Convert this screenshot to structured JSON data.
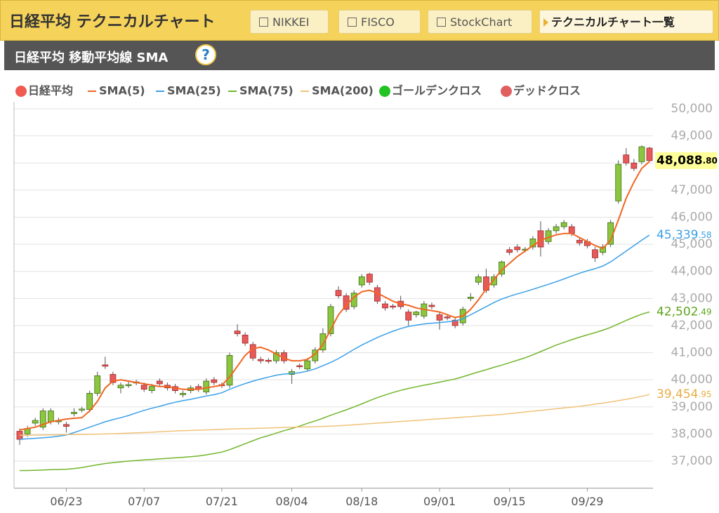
{
  "header": {
    "title": "日経平均 テクニカルチャート",
    "links": [
      "NIKKEI",
      "FISCO",
      "StockChart"
    ],
    "list_button": "テクニカルチャート一覧"
  },
  "subheader": {
    "title": "日経平均 移動平均線 SMA",
    "help": "?"
  },
  "chart_data": {
    "type": "candlestick",
    "categories": [
      null,
      null,
      null,
      null,
      null,
      null,
      "06/23",
      null,
      null,
      null,
      null,
      null,
      null,
      null,
      null,
      null,
      "07/07",
      null,
      null,
      null,
      null,
      null,
      null,
      null,
      null,
      null,
      "07/21",
      null,
      null,
      null,
      null,
      null,
      null,
      null,
      null,
      "08/04",
      null,
      null,
      null,
      null,
      null,
      null,
      null,
      null,
      "08/18",
      null,
      null,
      null,
      null,
      null,
      null,
      null,
      null,
      null,
      "09/01",
      null,
      null,
      null,
      null,
      null,
      null,
      null,
      null,
      "09/15",
      null,
      null,
      null,
      null,
      null,
      null,
      null,
      null,
      null,
      "09/29",
      null,
      null,
      null,
      null,
      null,
      null,
      null,
      null
    ],
    "candles": {
      "name": "日経平均",
      "color": "#f05a50",
      "up_color": "#8cc63f",
      "down_color": "#e85a5a",
      "open": [
        38100,
        38000,
        38400,
        38250,
        38450,
        38450,
        38350,
        38750,
        38880,
        38900,
        39500,
        40550,
        40200,
        39700,
        39780,
        39880,
        39800,
        39600,
        39950,
        39800,
        39750,
        39450,
        39600,
        39750,
        39550,
        40000,
        39820,
        39800,
        41800,
        41650,
        41300,
        40750,
        40720,
        40700,
        41000,
        40200,
        40520,
        40400,
        40700,
        41100,
        41700,
        43300,
        43100,
        42700,
        43500,
        43900,
        43400,
        42800,
        42720,
        42900,
        42500,
        42400,
        42350,
        42750,
        42400,
        42320,
        42200,
        42100,
        43000,
        43600,
        43800,
        43500,
        43900,
        44800,
        44900,
        44780,
        44900,
        45500,
        45100,
        45500,
        45650,
        45650,
        45150,
        45100,
        44800,
        44700,
        45000,
        46600,
        48300,
        48000,
        48050,
        48550
      ],
      "high": [
        38200,
        38300,
        38600,
        38950,
        38950,
        38600,
        38450,
        38950,
        39000,
        39600,
        40300,
        40850,
        40300,
        39900,
        39950,
        40000,
        39900,
        39850,
        40050,
        39900,
        39850,
        39600,
        39800,
        39850,
        40050,
        40100,
        39900,
        41000,
        42050,
        41750,
        41400,
        40850,
        40800,
        41100,
        41100,
        40400,
        40600,
        40800,
        41200,
        41900,
        42800,
        43450,
        43200,
        43300,
        43900,
        43950,
        43500,
        42900,
        42800,
        43100,
        42600,
        42550,
        42900,
        42850,
        42500,
        42400,
        42300,
        42700,
        43200,
        43900,
        44100,
        43900,
        44400,
        44900,
        45000,
        44900,
        45300,
        45850,
        45600,
        45750,
        45900,
        45750,
        45250,
        45200,
        44900,
        45000,
        45900,
        48100,
        48550,
        48150,
        48650,
        48600
      ],
      "low": [
        37600,
        37900,
        38300,
        38150,
        38350,
        38350,
        38050,
        38650,
        38800,
        38800,
        39400,
        40400,
        39800,
        39500,
        39700,
        39800,
        39550,
        39500,
        39750,
        39600,
        39500,
        39350,
        39500,
        39550,
        39450,
        39800,
        39700,
        39700,
        41600,
        41250,
        40700,
        40600,
        40600,
        40600,
        40600,
        39850,
        40400,
        40300,
        40600,
        41000,
        41600,
        43000,
        42500,
        42600,
        43400,
        43500,
        42800,
        42550,
        42600,
        42600,
        42000,
        42300,
        42250,
        42600,
        41850,
        42200,
        41900,
        42000,
        42900,
        43500,
        43200,
        43400,
        43800,
        44600,
        44700,
        44700,
        44800,
        44550,
        45000,
        45400,
        45550,
        45300,
        44950,
        44850,
        44350,
        44600,
        44900,
        46500,
        47900,
        47700,
        47950,
        48050
      ],
      "close": [
        37800,
        38200,
        38500,
        38850,
        38850,
        38500,
        38280,
        38800,
        38920,
        39500,
        40150,
        40500,
        39900,
        39800,
        39820,
        39920,
        39650,
        39750,
        39850,
        39700,
        39600,
        39500,
        39700,
        39650,
        39950,
        39900,
        39780,
        40900,
        41700,
        41350,
        40800,
        40700,
        40680,
        41000,
        40700,
        40300,
        40480,
        40700,
        41100,
        41700,
        42700,
        43100,
        42600,
        43200,
        43800,
        43600,
        42900,
        42650,
        42680,
        42700,
        42200,
        42500,
        42800,
        42700,
        42200,
        42280,
        42000,
        42600,
        43050,
        43800,
        43300,
        43800,
        44350,
        44700,
        44800,
        44820,
        45200,
        44900,
        45500,
        45650,
        45800,
        45400,
        45050,
        44950,
        44500,
        44900,
        45800,
        47950,
        48000,
        47800,
        48600,
        48088.8
      ],
      "last_label": "48,088.80"
    },
    "series": [
      {
        "name": "SMA(5)",
        "color": "#f26522",
        "values": [
          38150,
          38200,
          38250,
          38350,
          38450,
          38500,
          38550,
          38580,
          38600,
          38850,
          39200,
          39700,
          39950,
          40000,
          39950,
          39900,
          39850,
          39800,
          39750,
          39750,
          39700,
          39650,
          39650,
          39650,
          39700,
          39750,
          39800,
          40100,
          40500,
          40900,
          41150,
          41200,
          41100,
          40950,
          40800,
          40700,
          40700,
          40750,
          40950,
          41300,
          41850,
          42400,
          42750,
          43050,
          43250,
          43300,
          43200,
          43050,
          42900,
          42800,
          42750,
          42650,
          42600,
          42550,
          42500,
          42400,
          42300,
          42350,
          42600,
          42950,
          43350,
          43700,
          44050,
          44300,
          44550,
          44750,
          44950,
          45150,
          45250,
          45350,
          45400,
          45400,
          45250,
          45100,
          44950,
          44850,
          45150,
          45900,
          46700,
          47300,
          47800,
          48050
        ]
      },
      {
        "name": "SMA(25)",
        "color": "#3aa0e8",
        "label_color": "#3aa0e8",
        "last_label": "45,339.58",
        "values": [
          37800,
          37820,
          37840,
          37860,
          37880,
          37920,
          37960,
          38050,
          38150,
          38250,
          38350,
          38450,
          38530,
          38600,
          38680,
          38780,
          38870,
          38950,
          39020,
          39100,
          39170,
          39230,
          39280,
          39340,
          39400,
          39450,
          39520,
          39650,
          39760,
          39860,
          39950,
          40030,
          40100,
          40170,
          40210,
          40230,
          40260,
          40320,
          40400,
          40520,
          40640,
          40780,
          40950,
          41120,
          41280,
          41420,
          41560,
          41680,
          41790,
          41890,
          41970,
          42020,
          42060,
          42090,
          42110,
          42140,
          42170,
          42250,
          42400,
          42550,
          42700,
          42850,
          42980,
          43080,
          43170,
          43250,
          43340,
          43430,
          43520,
          43620,
          43720,
          43830,
          43930,
          44020,
          44100,
          44200,
          44350,
          44550,
          44750,
          44950,
          45150,
          45339.58
        ]
      },
      {
        "name": "SMA(75)",
        "color": "#72b52c",
        "label_color": "#5fa51e",
        "last_label": "42,502.49",
        "values": [
          36650,
          36650,
          36660,
          36670,
          36680,
          36690,
          36700,
          36720,
          36760,
          36810,
          36860,
          36910,
          36940,
          36970,
          37000,
          37020,
          37040,
          37060,
          37080,
          37100,
          37120,
          37140,
          37160,
          37190,
          37230,
          37280,
          37330,
          37420,
          37530,
          37640,
          37750,
          37860,
          37940,
          38030,
          38120,
          38200,
          38290,
          38390,
          38480,
          38580,
          38690,
          38790,
          38890,
          39000,
          39110,
          39230,
          39340,
          39440,
          39530,
          39610,
          39680,
          39740,
          39800,
          39850,
          39910,
          39970,
          40030,
          40110,
          40200,
          40290,
          40370,
          40460,
          40540,
          40630,
          40720,
          40810,
          40920,
          41040,
          41160,
          41280,
          41380,
          41480,
          41570,
          41660,
          41740,
          41830,
          41930,
          42060,
          42190,
          42310,
          42420,
          42502.49
        ]
      },
      {
        "name": "SMA(200)",
        "color": "#f0c27a",
        "label_color": "#e8ad45",
        "last_label": "39,454.95",
        "values": [
          37950,
          37950,
          37955,
          37960,
          37965,
          37970,
          37975,
          37980,
          37985,
          37990,
          37995,
          38000,
          38010,
          38020,
          38030,
          38040,
          38050,
          38065,
          38080,
          38095,
          38110,
          38120,
          38130,
          38140,
          38150,
          38160,
          38170,
          38180,
          38190,
          38200,
          38205,
          38210,
          38220,
          38230,
          38240,
          38250,
          38255,
          38260,
          38270,
          38280,
          38290,
          38300,
          38320,
          38340,
          38360,
          38380,
          38400,
          38420,
          38440,
          38460,
          38480,
          38500,
          38520,
          38540,
          38560,
          38580,
          38600,
          38620,
          38640,
          38660,
          38680,
          38700,
          38720,
          38750,
          38780,
          38810,
          38840,
          38870,
          38900,
          38930,
          38960,
          38990,
          39020,
          39060,
          39100,
          39140,
          39180,
          39230,
          39280,
          39330,
          39390,
          39454.95
        ]
      }
    ],
    "markers": [
      {
        "name": "ゴールデンクロス",
        "color": "#22c322"
      },
      {
        "name": "デッドクロス",
        "color": "#e06060"
      }
    ],
    "ylim": [
      36000,
      50250
    ],
    "yticks": [
      {
        "value": 37000,
        "label": "37,000"
      },
      {
        "value": 38000,
        "label": "38,000"
      },
      {
        "value": 39000,
        "label": "39,000"
      },
      {
        "value": 40000,
        "label": "40,000"
      },
      {
        "value": 41000,
        "label": "41,000"
      },
      {
        "value": 42000,
        "label": "42,000"
      },
      {
        "value": 43000,
        "label": "43,000"
      },
      {
        "value": 44000,
        "label": "44,000"
      },
      {
        "value": 45000,
        "label": "45,000"
      },
      {
        "value": 46000,
        "label": "46,000"
      },
      {
        "value": 47000,
        "label": "47,000"
      },
      {
        "value": 48000,
        "label": "48,000"
      },
      {
        "value": 49000,
        "label": "49,000"
      },
      {
        "value": 50000,
        "label": "50,000"
      }
    ],
    "grid": true
  }
}
